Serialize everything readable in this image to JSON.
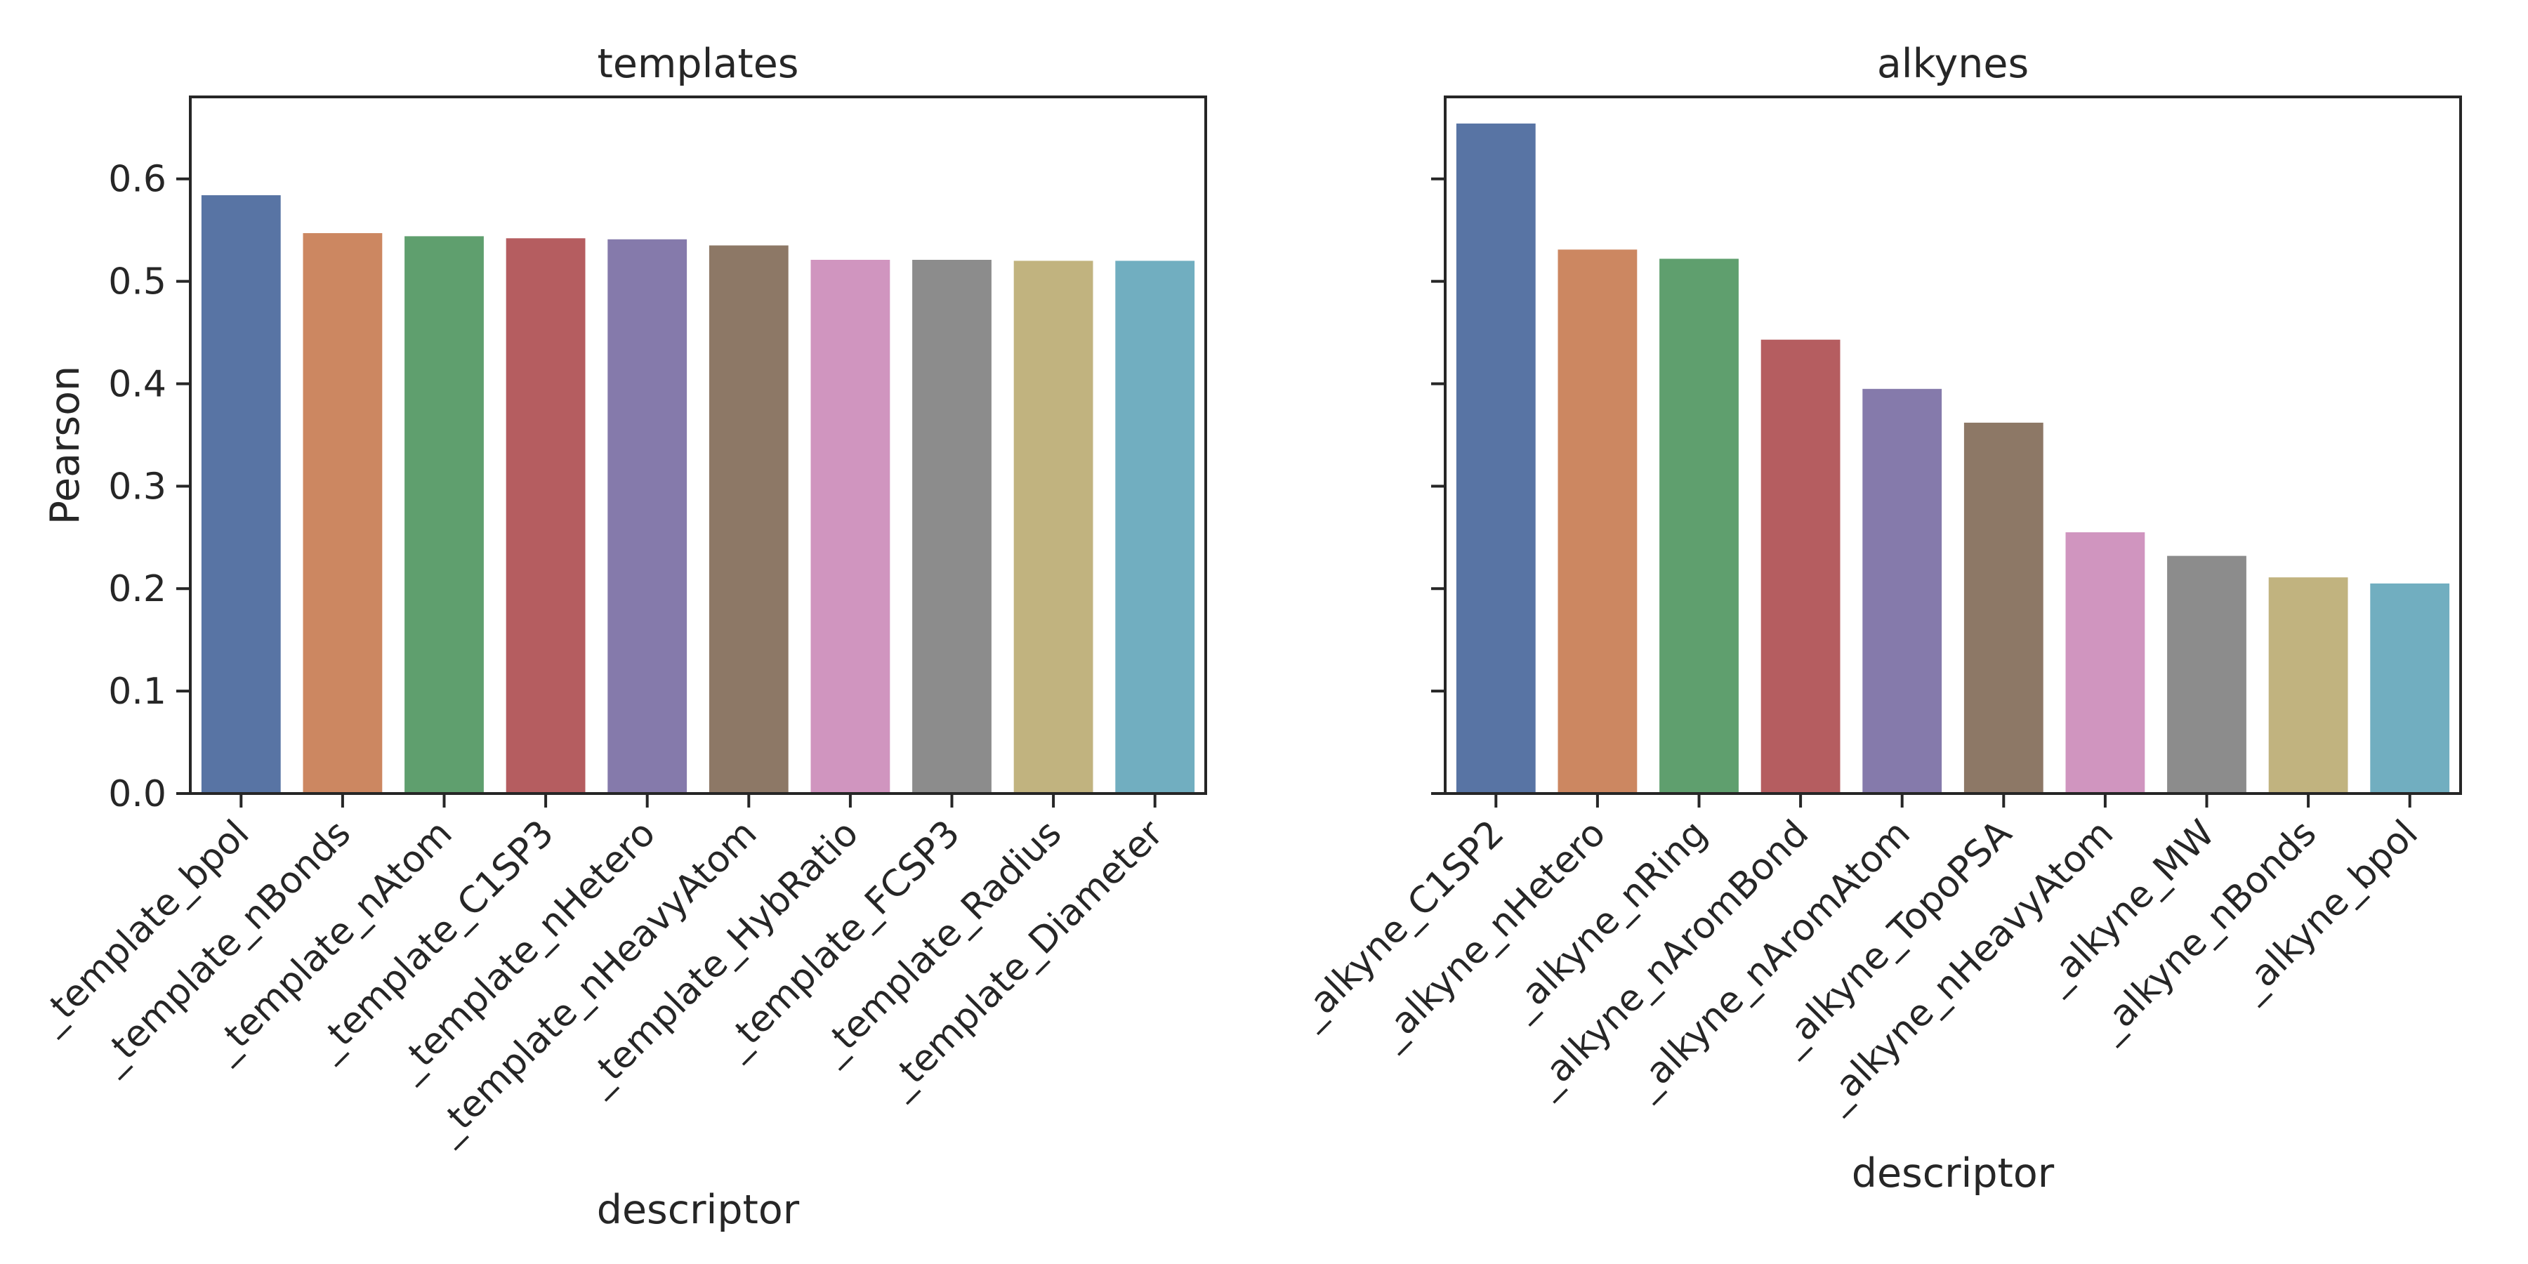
{
  "chart_data": [
    {
      "type": "bar",
      "title": "templates",
      "xlabel": "descriptor",
      "ylabel": "Pearson",
      "ylim": [
        0,
        0.68
      ],
      "yticks": [
        0.0,
        0.1,
        0.2,
        0.3,
        0.4,
        0.5,
        0.6
      ],
      "ytick_labels": [
        "0.0",
        "0.1",
        "0.2",
        "0.3",
        "0.4",
        "0.5",
        "0.6"
      ],
      "grid": false,
      "categories": [
        "_template_bpol",
        "_template_nBonds",
        "_template_nAtom",
        "_template_C1SP3",
        "_template_nHetero",
        "_template_nHeavyAtom",
        "_template_HybRatio",
        "_template_FCSP3",
        "_template_Radius",
        "_template_Diameter"
      ],
      "values": [
        0.584,
        0.547,
        0.544,
        0.542,
        0.541,
        0.535,
        0.521,
        0.521,
        0.52,
        0.52
      ],
      "colors": [
        "#5874a4",
        "#cc8761",
        "#5f9f6e",
        "#b55d60",
        "#857aab",
        "#8d7866",
        "#d095bf",
        "#8c8c8c",
        "#c1b37f",
        "#71aec0"
      ]
    },
    {
      "type": "bar",
      "title": "alkynes",
      "xlabel": "descriptor",
      "ylabel": "",
      "ylim": [
        0,
        0.68
      ],
      "yticks": [
        0.0,
        0.1,
        0.2,
        0.3,
        0.4,
        0.5,
        0.6
      ],
      "ytick_labels": [],
      "grid": false,
      "categories": [
        "_alkyne_C1SP2",
        "_alkyne_nHetero",
        "_alkyne_nRing",
        "_alkyne_nAromBond",
        "_alkyne_nAromAtom",
        "_alkyne_TopoPSA",
        "_alkyne_nHeavyAtom",
        "_alkyne_MW",
        "_alkyne_nBonds",
        "_alkyne_bpol"
      ],
      "values": [
        0.654,
        0.531,
        0.522,
        0.443,
        0.395,
        0.362,
        0.255,
        0.232,
        0.211,
        0.205
      ],
      "colors": [
        "#5874a4",
        "#cc8761",
        "#5f9f6e",
        "#b55d60",
        "#857aab",
        "#8d7866",
        "#d095bf",
        "#8c8c8c",
        "#c1b37f",
        "#71aec0"
      ]
    }
  ]
}
